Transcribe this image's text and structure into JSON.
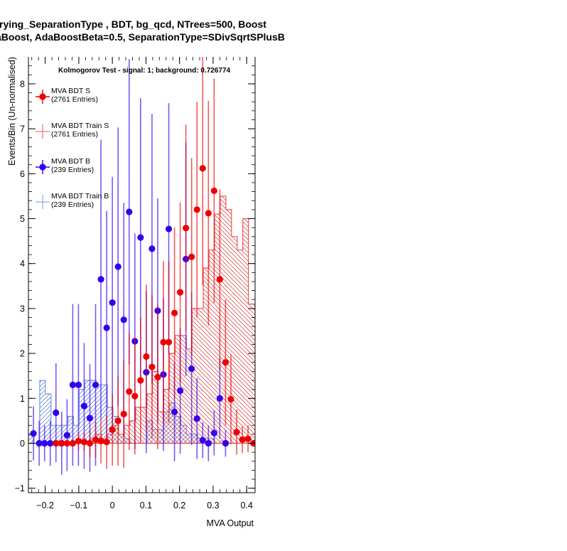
{
  "titles": {
    "line1": "rying_SeparationType ,  BDT, bg_qcd, NTrees=500, Boost",
    "line2": "aBoost, AdaBoostBeta=0.5, SeparationType=SDivSqrtSPlusB"
  },
  "chart_data": {
    "type": "scatter",
    "annotation": "Kolmogorov Test - signal: 1; background: 0.726774",
    "xlabel": "MVA Output",
    "ylabel": "Events/Bin (Un-normalised)",
    "xlim": [
      -0.25,
      0.425
    ],
    "ylim": [
      -1.1,
      8.6
    ],
    "xticks": [
      -0.2,
      -0.1,
      0,
      0.1,
      0.2,
      0.3,
      0.4
    ],
    "xtick_labels": [
      "−0.2",
      "−0.1",
      "0",
      "0.1",
      "0.2",
      "0.3",
      "0.4"
    ],
    "yticks": [
      -1,
      0,
      1,
      2,
      3,
      4,
      5,
      6,
      7,
      8
    ],
    "ytick_labels": [
      "−1",
      "0",
      "1",
      "2",
      "3",
      "4",
      "5",
      "6",
      "7",
      "8"
    ],
    "bin_width": 0.0168,
    "legend": [
      {
        "name": "MVA BDT S",
        "entries": "(2761 Entries)",
        "color": "#ee0000",
        "style": "marker"
      },
      {
        "name": "MVA BDT Train S",
        "entries": "(2761 Entries)",
        "color": "#ee5555",
        "style": "line"
      },
      {
        "name": "MVA BDT B",
        "entries": "(239 Entries)",
        "color": "#3300ee",
        "style": "marker"
      },
      {
        "name": "MVA BDT Train B",
        "entries": "(239 Entries)",
        "color": "#7799dd",
        "style": "line"
      }
    ],
    "series": [
      {
        "name": "MVA BDT S",
        "color": "#ee0000",
        "x": [
          -0.168,
          -0.152,
          -0.135,
          -0.118,
          -0.101,
          -0.084,
          -0.067,
          -0.05,
          -0.034,
          -0.017,
          0.0,
          0.017,
          0.034,
          0.05,
          0.067,
          0.084,
          0.101,
          0.118,
          0.135,
          0.152,
          0.168,
          0.185,
          0.202,
          0.219,
          0.236,
          0.252,
          0.269,
          0.286,
          0.303,
          0.32,
          0.337,
          0.353,
          0.37,
          0.387,
          0.404,
          0.42
        ],
        "y": [
          0.0,
          0.0,
          0.0,
          0.0,
          0.05,
          0.03,
          0.0,
          0.08,
          0.05,
          0.03,
          0.3,
          0.5,
          0.65,
          1.15,
          1.05,
          1.4,
          1.93,
          1.7,
          1.47,
          2.25,
          2.25,
          2.9,
          3.36,
          4.79,
          4.15,
          5.2,
          6.12,
          5.12,
          5.62,
          3.65,
          1.8,
          0.98,
          0.25,
          0.08,
          0.1,
          0.0
        ],
        "err": [
          0.0,
          0.0,
          0.0,
          0.0,
          0.2,
          0.2,
          0.3,
          0.4,
          0.5,
          0.6,
          0.8,
          1.0,
          1.2,
          1.3,
          1.3,
          1.4,
          1.6,
          1.6,
          1.6,
          1.8,
          1.8,
          1.9,
          2.0,
          2.3,
          2.2,
          2.4,
          2.6,
          2.5,
          2.5,
          2.0,
          1.4,
          1.0,
          0.5,
          0.3,
          0.3,
          0.0
        ]
      },
      {
        "name": "MVA BDT Train S",
        "color": "#ee5555",
        "y": [
          0.0,
          0.0,
          0.0,
          0.0,
          0.0,
          0.0,
          0.0,
          0.0,
          0.0,
          0.05,
          0.05,
          0.1,
          0.2,
          0.1,
          0.2,
          0.4,
          0.2,
          0.4,
          0.5,
          0.8,
          0.8,
          1.1,
          1.6,
          0.7,
          1.2,
          2.0,
          2.4,
          2.4,
          2.1,
          3.0,
          3.0,
          3.9,
          4.3,
          5.1,
          5.5,
          5.2,
          4.6,
          4.3,
          5.0,
          3.1,
          3.1,
          2.5,
          1.7,
          1.5,
          1.1,
          1.2,
          0.6,
          0.2,
          0.05,
          0.0
        ]
      },
      {
        "name": "MVA BDT B",
        "color": "#3300ee",
        "x": [
          -0.235,
          -0.218,
          -0.202,
          -0.185,
          -0.168,
          -0.151,
          -0.135,
          -0.118,
          -0.101,
          -0.084,
          -0.067,
          -0.05,
          -0.034,
          -0.017,
          0.0,
          0.017,
          0.034,
          0.05,
          0.067,
          0.084,
          0.101,
          0.118,
          0.135,
          0.152,
          0.168,
          0.185,
          0.202,
          0.219,
          0.236,
          0.252,
          0.269,
          0.286,
          0.303,
          0.32,
          0.337
        ],
        "y": [
          0.22,
          0.0,
          0.0,
          0.0,
          0.68,
          0.0,
          0.18,
          1.3,
          1.3,
          0.83,
          0.56,
          1.3,
          3.65,
          2.57,
          3.13,
          3.93,
          2.75,
          5.15,
          2.27,
          4.58,
          1.58,
          4.33,
          2.95,
          1.53,
          4.77,
          0.7,
          1.17,
          4.1,
          1.66,
          0.55,
          0.07,
          0.0,
          0.23,
          1.0,
          0.0
        ],
        "err": [
          0.6,
          0.5,
          0.4,
          0.5,
          1.1,
          0.7,
          0.8,
          1.8,
          1.8,
          1.4,
          1.2,
          1.8,
          3.1,
          2.6,
          2.8,
          3.1,
          2.6,
          3.4,
          2.4,
          3.1,
          1.8,
          3.0,
          2.5,
          1.7,
          2.8,
          1.1,
          1.4,
          2.6,
          1.7,
          0.9,
          0.4,
          0.4,
          0.5,
          0.9,
          0.3
        ]
      },
      {
        "name": "MVA BDT Train B",
        "color": "#7799dd",
        "y": [
          0.2,
          0.0,
          1.4,
          1.1,
          0.4,
          0.4,
          0.4,
          0.6,
          0.4,
          1.2,
          1.4,
          1.4,
          1.3,
          1.3,
          0.8,
          0.6,
          0.2,
          0.1,
          0.0,
          0.0,
          0.0,
          0.5,
          0.3,
          0.3,
          0.7,
          0.9,
          0.6,
          0.4,
          0.2,
          0.2,
          0.1,
          0.1,
          0.1,
          0.0,
          0.05,
          0.0,
          0.0,
          0.0,
          0.0,
          0.0,
          0.0,
          0.0,
          0.0,
          0.0,
          0.0,
          0.0,
          0.0,
          0.0,
          0.0,
          0.0
        ]
      }
    ]
  }
}
